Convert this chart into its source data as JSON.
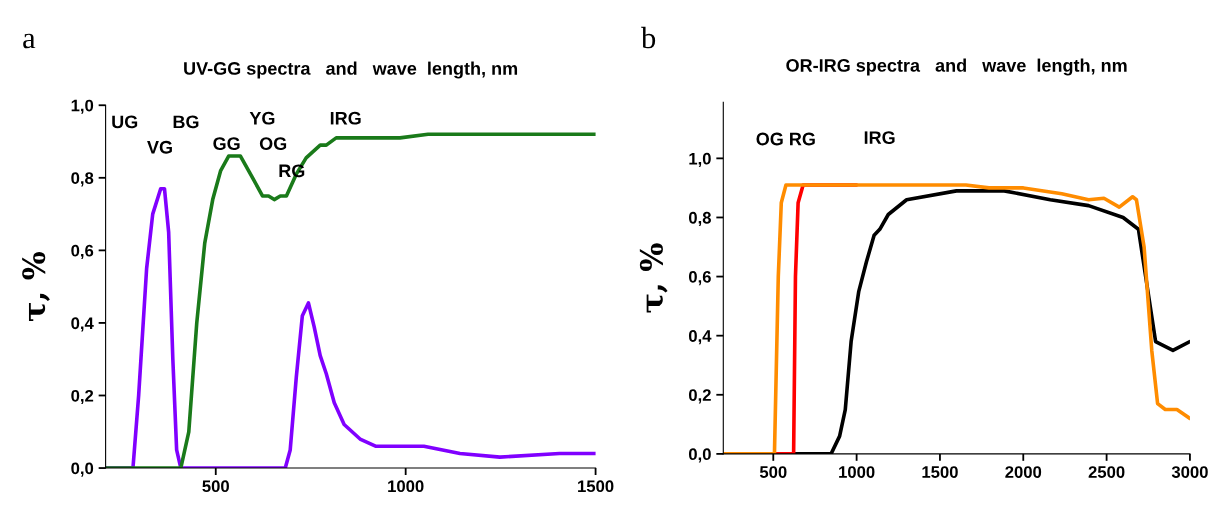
{
  "chart_data": [
    {
      "type": "line",
      "title": "UV-GG spectra   and   wave  length, nm",
      "ylabel": "τ, %",
      "xlim": [
        210,
        1500
      ],
      "xticks": [
        500,
        1000,
        1500
      ],
      "ylim": [
        0,
        1.0
      ],
      "yticks": [
        {
          "value": 0,
          "label": "0,0"
        },
        {
          "value": 0.2,
          "label": "0,2"
        },
        {
          "value": 0.4,
          "label": "0,4"
        },
        {
          "value": 0.6,
          "label": "0,6"
        },
        {
          "value": 0.8,
          "label": "0,8"
        },
        {
          "value": 1.0,
          "label": "1,0"
        }
      ],
      "grid": false,
      "marker": "none",
      "line_style": "solid",
      "annotations": [
        "a",
        "UG",
        "VG",
        "BG",
        "GG",
        "YG",
        "OG",
        "RG",
        "IRG"
      ],
      "series": [
        {
          "color": "#8000ff",
          "x": [
            210,
            282,
            297,
            318,
            334,
            355,
            365,
            376,
            387,
            397,
            408,
            683,
            696,
            712,
            728,
            744,
            759,
            775,
            791,
            812,
            838,
            880,
            922,
            1048,
            1143,
            1248,
            1405,
            1500
          ],
          "values": [
            0,
            0,
            0.2,
            0.55,
            0.7,
            0.77,
            0.77,
            0.65,
            0.3,
            0.05,
            0,
            0,
            0.05,
            0.25,
            0.42,
            0.455,
            0.39,
            0.31,
            0.26,
            0.18,
            0.12,
            0.08,
            0.06,
            0.06,
            0.04,
            0.03,
            0.04,
            0.04
          ]
        },
        {
          "color": "#1a7a1a",
          "x": [
            210,
            408,
            429,
            450,
            471,
            492,
            513,
            534,
            565,
            597,
            623,
            639,
            654,
            670,
            686,
            712,
            738,
            775,
            791,
            817,
            859,
            985,
            1059,
            1500
          ],
          "values": [
            0,
            0,
            0.1,
            0.4,
            0.62,
            0.74,
            0.82,
            0.86,
            0.86,
            0.8,
            0.75,
            0.75,
            0.74,
            0.75,
            0.75,
            0.81,
            0.855,
            0.89,
            0.89,
            0.91,
            0.91,
            0.91,
            0.92,
            0.92
          ]
        }
      ]
    },
    {
      "type": "line",
      "title": "OR-IRG spectra   and   wave  length, nm",
      "ylabel": "τ, %",
      "xlim": [
        200,
        3000
      ],
      "xticks": [
        500,
        1000,
        1500,
        2000,
        2500,
        3000
      ],
      "ylim": [
        0,
        1.19
      ],
      "yticks": [
        {
          "value": 0,
          "label": "0,0"
        },
        {
          "value": 0.2,
          "label": "0,2"
        },
        {
          "value": 0.4,
          "label": "0,4"
        },
        {
          "value": 0.6,
          "label": "0,6"
        },
        {
          "value": 0.8,
          "label": "0,8"
        },
        {
          "value": 1.0,
          "label": "1,0"
        }
      ],
      "grid": false,
      "marker": "none",
      "line_style": "solid",
      "annotations": [
        "b",
        "OG RG",
        "IRG"
      ],
      "series": [
        {
          "color": "#000000",
          "x": [
            625,
            847,
            898,
            932,
            967,
            1013,
            1059,
            1105,
            1139,
            1190,
            1300,
            1599,
            1886,
            2162,
            2392,
            2599,
            2691,
            2794,
            2898,
            3000
          ],
          "values": [
            0,
            0,
            0.06,
            0.15,
            0.38,
            0.55,
            0.65,
            0.74,
            0.76,
            0.81,
            0.86,
            0.89,
            0.89,
            0.86,
            0.84,
            0.8,
            0.76,
            0.38,
            0.35,
            0.38
          ]
        },
        {
          "color": "#ff0000",
          "x": [
            510,
            622,
            633,
            649,
            679,
            1000
          ],
          "values": [
            0,
            0,
            0.6,
            0.85,
            0.91,
            0.91
          ]
        },
        {
          "color": "#ff8c00",
          "x": [
            200,
            507,
            530,
            548,
            576,
            1656,
            1794,
            2001,
            2231,
            2392,
            2484,
            2576,
            2656,
            2679,
            2725,
            2771,
            2806,
            2852,
            2922,
            3000
          ],
          "values": [
            0,
            0,
            0.6,
            0.85,
            0.91,
            0.91,
            0.9,
            0.9,
            0.88,
            0.86,
            0.865,
            0.835,
            0.87,
            0.86,
            0.7,
            0.35,
            0.17,
            0.15,
            0.15,
            0.12
          ]
        }
      ]
    }
  ]
}
